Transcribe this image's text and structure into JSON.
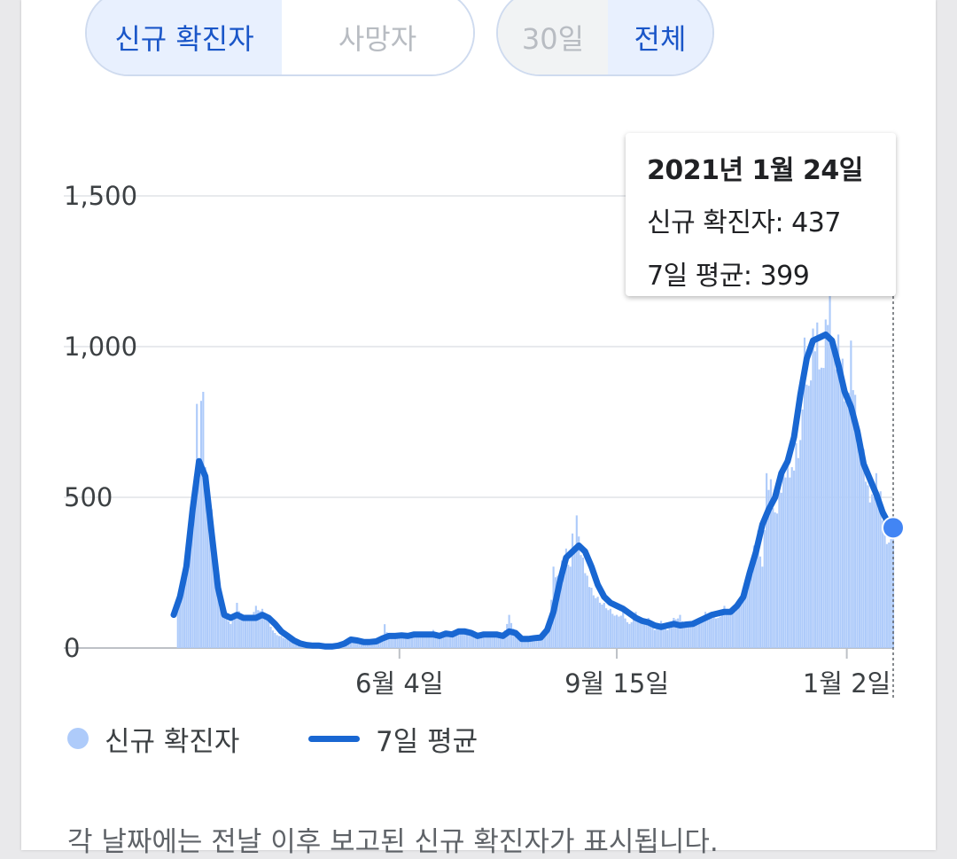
{
  "tabs": {
    "metric": [
      {
        "label": "신규 확진자",
        "active": true
      },
      {
        "label": "사망자",
        "active": false
      }
    ],
    "range": [
      {
        "label": "30일",
        "active": false
      },
      {
        "label": "전체",
        "active": true
      }
    ]
  },
  "tooltip": {
    "date": "2021년 1월 24일",
    "new_cases": "신규 확진자: 437",
    "avg": "7일 평균: 399"
  },
  "legend": {
    "new_cases": "신규 확진자",
    "avg": "7일 평균"
  },
  "footnote": "각 날짜에는 전날 이후 보고된 신규 확진자가 표시됩니다.",
  "colors": {
    "bar": "#aecbfa",
    "line": "#1967d2",
    "accent": "#1a56c8"
  },
  "chart_data": {
    "type": "bar",
    "y_ticks": [
      {
        "value": 0,
        "label": "0"
      },
      {
        "value": 500,
        "label": "500"
      },
      {
        "value": 1000,
        "label": "1,000"
      },
      {
        "value": 1500,
        "label": "1,500"
      }
    ],
    "ylim": [
      0,
      1500
    ],
    "x_ticks": [
      {
        "date": "2020-06-04",
        "label": "6월 4일"
      },
      {
        "date": "2020-09-15",
        "label": "9월 15일"
      },
      {
        "date": "2021-01-02",
        "label": "1월 2일"
      }
    ],
    "x_range": [
      "2020-02-18",
      "2021-01-24"
    ],
    "series": [
      {
        "name": "7일 평균",
        "kind": "line",
        "points": [
          [
            "2020-02-18",
            110
          ],
          [
            "2020-02-21",
            170
          ],
          [
            "2020-02-24",
            270
          ],
          [
            "2020-02-27",
            460
          ],
          [
            "2020-03-01",
            620
          ],
          [
            "2020-03-04",
            570
          ],
          [
            "2020-03-07",
            380
          ],
          [
            "2020-03-10",
            200
          ],
          [
            "2020-03-13",
            110
          ],
          [
            "2020-03-16",
            100
          ],
          [
            "2020-03-19",
            110
          ],
          [
            "2020-03-22",
            100
          ],
          [
            "2020-03-25",
            100
          ],
          [
            "2020-03-28",
            100
          ],
          [
            "2020-03-31",
            110
          ],
          [
            "2020-04-03",
            100
          ],
          [
            "2020-04-06",
            80
          ],
          [
            "2020-04-09",
            55
          ],
          [
            "2020-04-12",
            40
          ],
          [
            "2020-04-15",
            25
          ],
          [
            "2020-04-18",
            15
          ],
          [
            "2020-04-21",
            10
          ],
          [
            "2020-04-24",
            8
          ],
          [
            "2020-04-27",
            8
          ],
          [
            "2020-04-30",
            5
          ],
          [
            "2020-05-03",
            5
          ],
          [
            "2020-05-06",
            8
          ],
          [
            "2020-05-09",
            15
          ],
          [
            "2020-05-12",
            28
          ],
          [
            "2020-05-15",
            25
          ],
          [
            "2020-05-18",
            20
          ],
          [
            "2020-05-21",
            20
          ],
          [
            "2020-05-24",
            22
          ],
          [
            "2020-05-27",
            32
          ],
          [
            "2020-05-30",
            40
          ],
          [
            "2020-06-02",
            40
          ],
          [
            "2020-06-05",
            42
          ],
          [
            "2020-06-08",
            40
          ],
          [
            "2020-06-11",
            45
          ],
          [
            "2020-06-14",
            45
          ],
          [
            "2020-06-17",
            45
          ],
          [
            "2020-06-20",
            45
          ],
          [
            "2020-06-23",
            40
          ],
          [
            "2020-06-26",
            48
          ],
          [
            "2020-06-29",
            45
          ],
          [
            "2020-07-02",
            55
          ],
          [
            "2020-07-05",
            55
          ],
          [
            "2020-07-08",
            50
          ],
          [
            "2020-07-11",
            40
          ],
          [
            "2020-07-14",
            45
          ],
          [
            "2020-07-17",
            45
          ],
          [
            "2020-07-20",
            45
          ],
          [
            "2020-07-23",
            40
          ],
          [
            "2020-07-26",
            55
          ],
          [
            "2020-07-29",
            50
          ],
          [
            "2020-08-01",
            30
          ],
          [
            "2020-08-04",
            30
          ],
          [
            "2020-08-07",
            33
          ],
          [
            "2020-08-10",
            35
          ],
          [
            "2020-08-13",
            60
          ],
          [
            "2020-08-16",
            120
          ],
          [
            "2020-08-19",
            220
          ],
          [
            "2020-08-22",
            300
          ],
          [
            "2020-08-25",
            320
          ],
          [
            "2020-08-28",
            340
          ],
          [
            "2020-08-31",
            320
          ],
          [
            "2020-09-03",
            270
          ],
          [
            "2020-09-06",
            210
          ],
          [
            "2020-09-09",
            170
          ],
          [
            "2020-09-12",
            150
          ],
          [
            "2020-09-15",
            140
          ],
          [
            "2020-09-18",
            130
          ],
          [
            "2020-09-21",
            115
          ],
          [
            "2020-09-24",
            100
          ],
          [
            "2020-09-27",
            90
          ],
          [
            "2020-09-30",
            85
          ],
          [
            "2020-10-03",
            75
          ],
          [
            "2020-10-06",
            70
          ],
          [
            "2020-10-09",
            75
          ],
          [
            "2020-10-12",
            80
          ],
          [
            "2020-10-15",
            75
          ],
          [
            "2020-10-18",
            78
          ],
          [
            "2020-10-21",
            80
          ],
          [
            "2020-10-24",
            90
          ],
          [
            "2020-10-27",
            100
          ],
          [
            "2020-10-30",
            110
          ],
          [
            "2020-11-02",
            115
          ],
          [
            "2020-11-05",
            120
          ],
          [
            "2020-11-08",
            120
          ],
          [
            "2020-11-11",
            140
          ],
          [
            "2020-11-14",
            170
          ],
          [
            "2020-11-17",
            250
          ],
          [
            "2020-11-20",
            320
          ],
          [
            "2020-11-23",
            410
          ],
          [
            "2020-11-26",
            460
          ],
          [
            "2020-11-29",
            500
          ],
          [
            "2020-12-02",
            580
          ],
          [
            "2020-12-05",
            620
          ],
          [
            "2020-12-08",
            700
          ],
          [
            "2020-12-11",
            840
          ],
          [
            "2020-12-14",
            960
          ],
          [
            "2020-12-17",
            1020
          ],
          [
            "2020-12-20",
            1030
          ],
          [
            "2020-12-23",
            1040
          ],
          [
            "2020-12-26",
            1020
          ],
          [
            "2020-12-29",
            940
          ],
          [
            "2021-01-01",
            850
          ],
          [
            "2021-01-04",
            800
          ],
          [
            "2021-01-07",
            720
          ],
          [
            "2021-01-10",
            610
          ],
          [
            "2021-01-13",
            560
          ],
          [
            "2021-01-16",
            510
          ],
          [
            "2021-01-19",
            450
          ],
          [
            "2021-01-22",
            410
          ],
          [
            "2021-01-24",
            399
          ]
        ]
      },
      {
        "name": "신규 확진자",
        "kind": "bar",
        "points": [
          [
            "2020-02-20",
            140
          ],
          [
            "2020-02-23",
            230
          ],
          [
            "2020-02-25",
            280
          ],
          [
            "2020-02-26",
            420
          ],
          [
            "2020-02-27",
            480
          ],
          [
            "2020-02-28",
            570
          ],
          [
            "2020-02-29",
            810
          ],
          [
            "2020-03-01",
            560
          ],
          [
            "2020-03-02",
            820
          ],
          [
            "2020-03-03",
            850
          ],
          [
            "2020-03-04",
            600
          ],
          [
            "2020-03-05",
            500
          ],
          [
            "2020-03-06",
            480
          ],
          [
            "2020-03-07",
            460
          ],
          [
            "2020-03-08",
            360
          ],
          [
            "2020-03-09",
            300
          ],
          [
            "2020-03-10",
            240
          ],
          [
            "2020-03-11",
            150
          ],
          [
            "2020-03-13",
            130
          ],
          [
            "2020-03-16",
            80
          ],
          [
            "2020-03-19",
            150
          ],
          [
            "2020-03-22",
            100
          ],
          [
            "2020-03-25",
            110
          ],
          [
            "2020-03-28",
            140
          ],
          [
            "2020-03-31",
            130
          ],
          [
            "2020-04-03",
            90
          ],
          [
            "2020-04-06",
            50
          ],
          [
            "2020-04-09",
            40
          ],
          [
            "2020-04-12",
            30
          ],
          [
            "2020-04-15",
            20
          ],
          [
            "2020-04-18",
            12
          ],
          [
            "2020-04-21",
            10
          ],
          [
            "2020-04-24",
            8
          ],
          [
            "2020-04-27",
            12
          ],
          [
            "2020-04-30",
            5
          ],
          [
            "2020-05-03",
            8
          ],
          [
            "2020-05-06",
            4
          ],
          [
            "2020-05-09",
            18
          ],
          [
            "2020-05-12",
            30
          ],
          [
            "2020-05-15",
            28
          ],
          [
            "2020-05-18",
            20
          ],
          [
            "2020-05-21",
            15
          ],
          [
            "2020-05-24",
            25
          ],
          [
            "2020-05-27",
            40
          ],
          [
            "2020-05-28",
            79
          ],
          [
            "2020-05-30",
            35
          ],
          [
            "2020-06-02",
            45
          ],
          [
            "2020-06-05",
            50
          ],
          [
            "2020-06-08",
            35
          ],
          [
            "2020-06-11",
            45
          ],
          [
            "2020-06-14",
            37
          ],
          [
            "2020-06-17",
            50
          ],
          [
            "2020-06-20",
            60
          ],
          [
            "2020-06-23",
            40
          ],
          [
            "2020-06-26",
            50
          ],
          [
            "2020-06-29",
            45
          ],
          [
            "2020-07-02",
            55
          ],
          [
            "2020-07-05",
            60
          ],
          [
            "2020-07-08",
            45
          ],
          [
            "2020-07-11",
            35
          ],
          [
            "2020-07-14",
            40
          ],
          [
            "2020-07-17",
            50
          ],
          [
            "2020-07-20",
            45
          ],
          [
            "2020-07-23",
            40
          ],
          [
            "2020-07-26",
            110
          ],
          [
            "2020-07-29",
            50
          ],
          [
            "2020-08-01",
            30
          ],
          [
            "2020-08-04",
            35
          ],
          [
            "2020-08-07",
            40
          ],
          [
            "2020-08-10",
            30
          ],
          [
            "2020-08-13",
            60
          ],
          [
            "2020-08-14",
            100
          ],
          [
            "2020-08-15",
            160
          ],
          [
            "2020-08-16",
            270
          ],
          [
            "2020-08-18",
            240
          ],
          [
            "2020-08-20",
            290
          ],
          [
            "2020-08-22",
            330
          ],
          [
            "2020-08-24",
            270
          ],
          [
            "2020-08-25",
            380
          ],
          [
            "2020-08-26",
            320
          ],
          [
            "2020-08-27",
            440
          ],
          [
            "2020-08-28",
            370
          ],
          [
            "2020-08-30",
            300
          ],
          [
            "2020-09-01",
            240
          ],
          [
            "2020-09-03",
            200
          ],
          [
            "2020-09-06",
            170
          ],
          [
            "2020-09-09",
            150
          ],
          [
            "2020-09-12",
            130
          ],
          [
            "2020-09-15",
            110
          ],
          [
            "2020-09-18",
            120
          ],
          [
            "2020-09-21",
            80
          ],
          [
            "2020-09-24",
            120
          ],
          [
            "2020-09-27",
            90
          ],
          [
            "2020-09-30",
            100
          ],
          [
            "2020-10-03",
            60
          ],
          [
            "2020-10-06",
            90
          ],
          [
            "2020-10-09",
            60
          ],
          [
            "2020-10-12",
            100
          ],
          [
            "2020-10-15",
            110
          ],
          [
            "2020-10-18",
            70
          ],
          [
            "2020-10-21",
            90
          ],
          [
            "2020-10-24",
            100
          ],
          [
            "2020-10-27",
            120
          ],
          [
            "2020-10-30",
            120
          ],
          [
            "2020-11-02",
            100
          ],
          [
            "2020-11-05",
            140
          ],
          [
            "2020-11-08",
            130
          ],
          [
            "2020-11-11",
            150
          ],
          [
            "2020-11-14",
            200
          ],
          [
            "2020-11-17",
            250
          ],
          [
            "2020-11-19",
            340
          ],
          [
            "2020-11-21",
            390
          ],
          [
            "2020-11-23",
            270
          ],
          [
            "2020-11-25",
            580
          ],
          [
            "2020-11-27",
            560
          ],
          [
            "2020-11-29",
            450
          ],
          [
            "2020-12-01",
            520
          ],
          [
            "2020-12-03",
            600
          ],
          [
            "2020-12-05",
            630
          ],
          [
            "2020-12-07",
            600
          ],
          [
            "2020-12-09",
            680
          ],
          [
            "2020-12-11",
            690
          ],
          [
            "2020-12-13",
            1030
          ],
          [
            "2020-12-15",
            870
          ],
          [
            "2020-12-17",
            1060
          ],
          [
            "2020-12-19",
            1080
          ],
          [
            "2020-12-21",
            930
          ],
          [
            "2020-12-23",
            1090
          ],
          [
            "2020-12-25",
            1240
          ],
          [
            "2020-12-27",
            970
          ],
          [
            "2020-12-29",
            1040
          ],
          [
            "2020-12-31",
            960
          ],
          [
            "2021-01-02",
            820
          ],
          [
            "2021-01-04",
            1020
          ],
          [
            "2021-01-06",
            840
          ],
          [
            "2021-01-08",
            670
          ],
          [
            "2021-01-10",
            660
          ],
          [
            "2021-01-12",
            540
          ],
          [
            "2021-01-14",
            510
          ],
          [
            "2021-01-16",
            580
          ],
          [
            "2021-01-18",
            520
          ],
          [
            "2021-01-20",
            400
          ],
          [
            "2021-01-22",
            350
          ],
          [
            "2021-01-24",
            437
          ]
        ]
      }
    ]
  }
}
